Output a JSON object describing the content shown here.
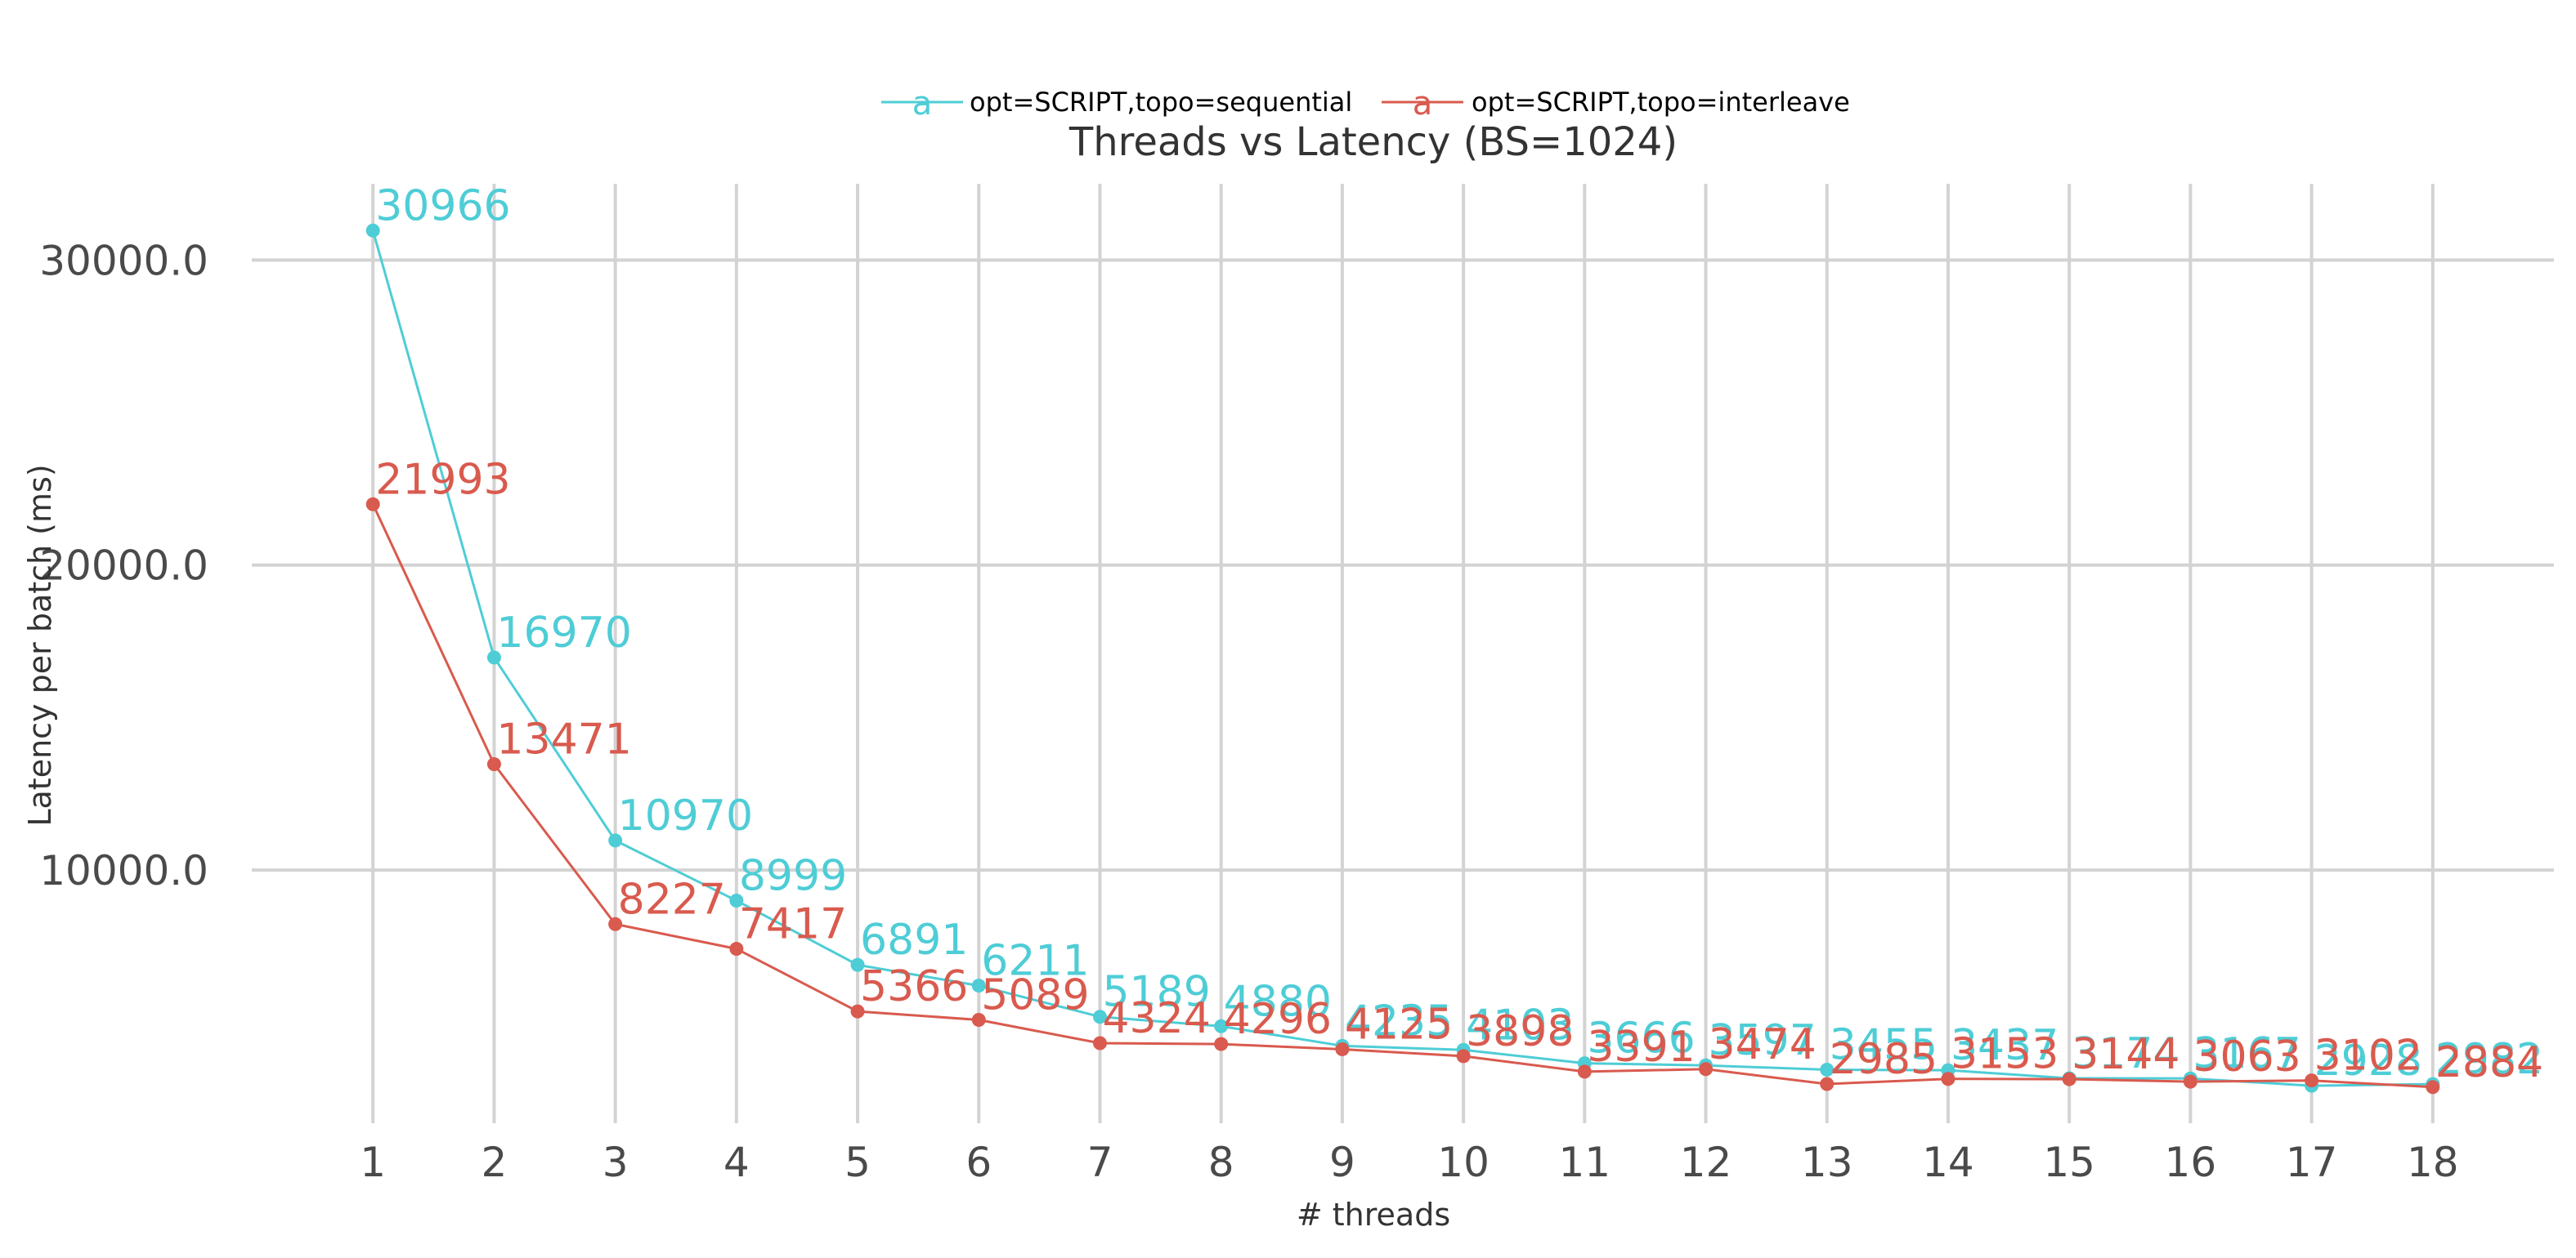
{
  "chart_data": {
    "type": "line",
    "title": "Threads vs Latency (BS=1024)",
    "xlabel": "# threads",
    "ylabel": "Latency per batch (ms)",
    "x": [
      1,
      2,
      3,
      4,
      5,
      6,
      7,
      8,
      9,
      10,
      11,
      12,
      13,
      14,
      15,
      16,
      17,
      18
    ],
    "x_tick_labels": [
      "1",
      "2",
      "3",
      "4",
      "5",
      "6",
      "7",
      "8",
      "9",
      "10",
      "11",
      "12",
      "13",
      "14",
      "15",
      "16",
      "17",
      "18"
    ],
    "y_ticks": [
      10000,
      20000,
      30000
    ],
    "y_tick_labels": [
      "10000.0",
      "20000.0",
      "30000.0"
    ],
    "xlim": [
      0,
      19
    ],
    "ylim": [
      1700,
      32500
    ],
    "grid": true,
    "legend": {
      "position": "top-center",
      "glyph": "a"
    },
    "series": [
      {
        "name": "opt=SCRIPT,topo=sequential",
        "color": "#4ecdd6",
        "values": [
          30966,
          16970,
          10970,
          8999,
          6891,
          6211,
          5189,
          4880,
          4235,
          4103,
          3666,
          3597,
          3455,
          3437,
          3174,
          3167,
          2928,
          2982
        ],
        "labels": [
          "30966",
          "16970",
          "10970",
          "8999",
          "6891",
          "6211",
          "5189",
          "4880",
          "4235",
          "4103",
          "3666",
          "3597",
          "3455",
          "3437",
          "3174",
          "3167",
          "2928",
          "2982"
        ]
      },
      {
        "name": "opt=SCRIPT,topo=interleave",
        "color": "#d95a4e",
        "values": [
          21993,
          13471,
          8227,
          7417,
          5366,
          5089,
          4324,
          4296,
          4125,
          3898,
          3391,
          3474,
          2985,
          3153,
          3144,
          3063,
          3102,
          2884
        ],
        "labels": [
          "21993",
          "13471",
          "8227",
          "7417",
          "5366",
          "5089",
          "4324",
          "4296",
          "4125",
          "3898",
          "3391",
          "3474",
          "2985",
          "3153",
          "3144",
          "3063",
          "3102",
          "2884"
        ]
      }
    ]
  }
}
